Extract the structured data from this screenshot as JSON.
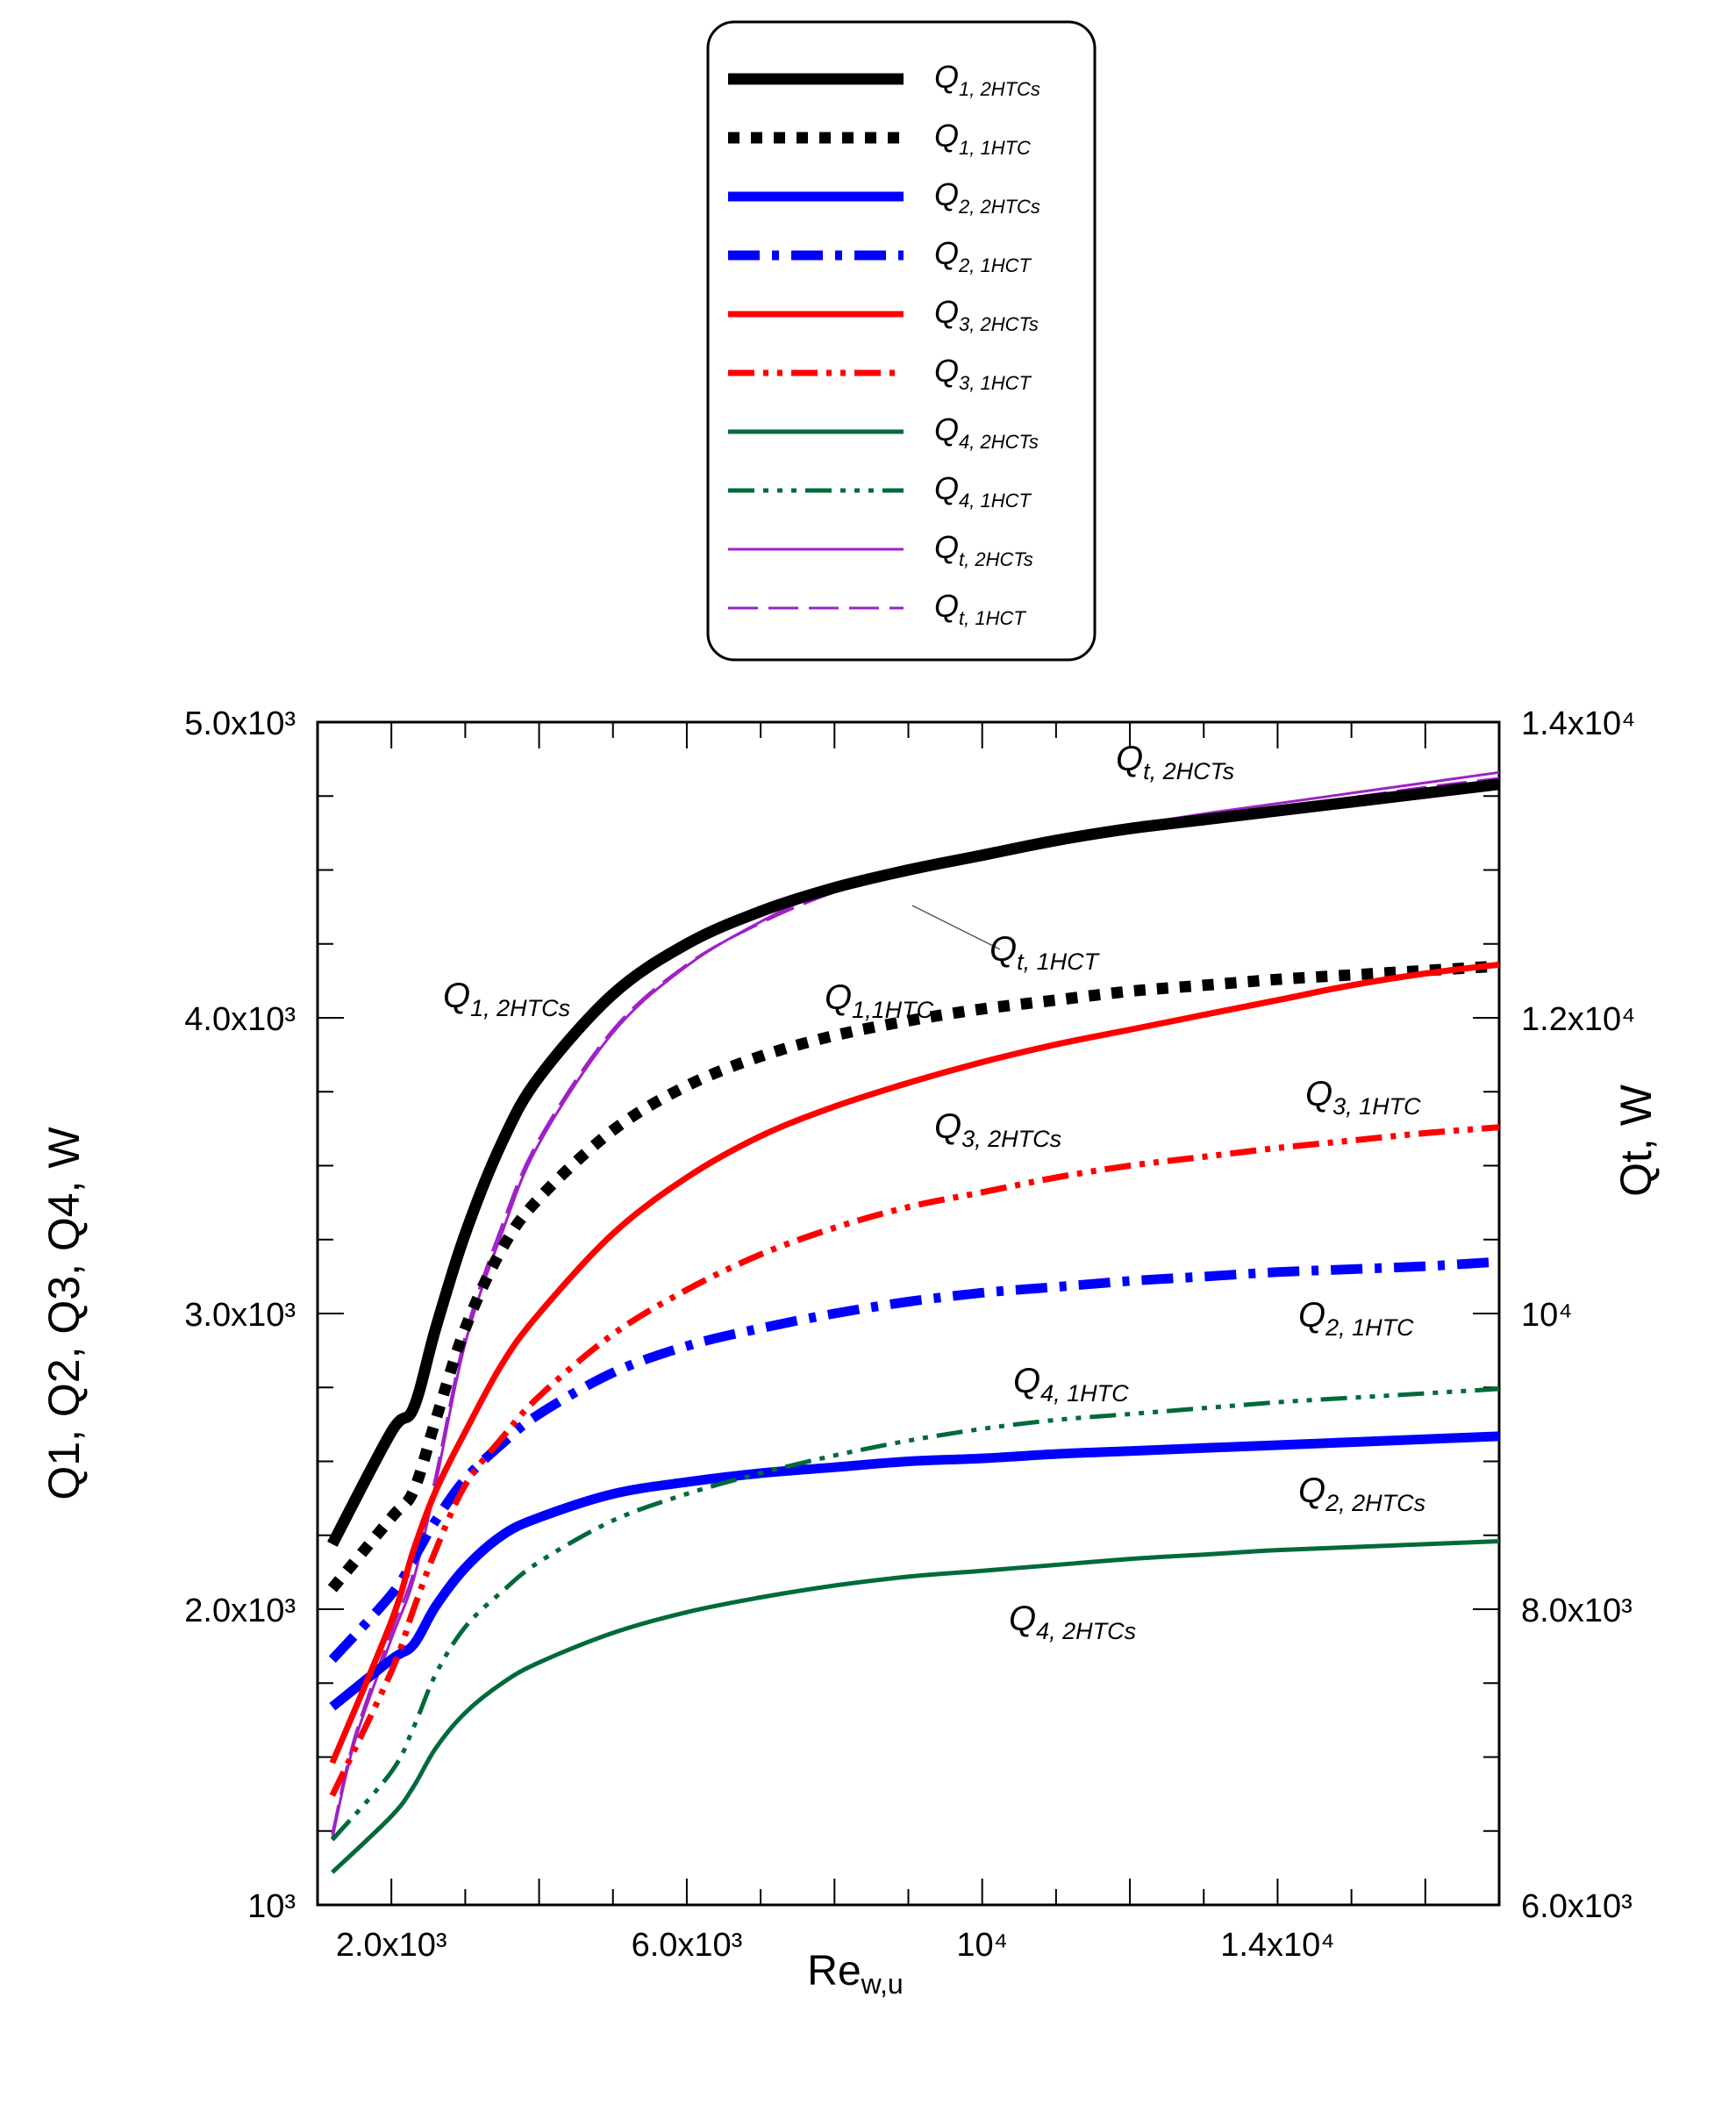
{
  "chart_data": {
    "type": "line",
    "xlabel": "Re",
    "xlabel_sub": "w,u",
    "ylabel_left": "Q1, Q2, Q3, Q4, W",
    "ylabel_right": "Qt, W",
    "xlim": [
      1000,
      17000
    ],
    "ylim_left": [
      1000,
      5000
    ],
    "ylim_right": [
      6000,
      14000
    ],
    "x_ticks": [
      {
        "value": 2000,
        "label": "2.0x10³"
      },
      {
        "value": 6000,
        "label": "6.0x10³"
      },
      {
        "value": 10000,
        "label": "10⁴"
      },
      {
        "value": 14000,
        "label": "1.4x10⁴"
      }
    ],
    "y_left_ticks": [
      {
        "value": 1000,
        "label": "10³"
      },
      {
        "value": 2000,
        "label": "2.0x10³"
      },
      {
        "value": 3000,
        "label": "3.0x10³"
      },
      {
        "value": 4000,
        "label": "4.0x10³"
      },
      {
        "value": 5000,
        "label": "5.0x10³"
      }
    ],
    "y_right_ticks": [
      {
        "value": 6000,
        "label": "6.0x10³"
      },
      {
        "value": 8000,
        "label": "8.0x10³"
      },
      {
        "value": 10000,
        "label": "10⁴"
      },
      {
        "value": 12000,
        "label": "1.2x10⁴"
      },
      {
        "value": 14000,
        "label": "1.4x10⁴"
      }
    ],
    "series": [
      {
        "key": "q1_2htcs",
        "legend_main": "Q",
        "legend_sub": "1, 2HTCs",
        "axis": "left",
        "color": "#000000",
        "width": 13,
        "dash": "",
        "x": [
          1200,
          2000,
          2300,
          2600,
          3000,
          3500,
          4000,
          5000,
          6000,
          7000,
          8000,
          9000,
          10000,
          11000,
          12000,
          13000,
          14000,
          15000,
          16000,
          17000
        ],
        "y": [
          2220,
          2600,
          2680,
          2950,
          3270,
          3580,
          3800,
          4080,
          4250,
          4360,
          4440,
          4500,
          4550,
          4600,
          4640,
          4670,
          4700,
          4730,
          4760,
          4790
        ]
      },
      {
        "key": "q1_1htc",
        "legend_main": "Q",
        "legend_sub": "1, 1HTC",
        "axis": "left",
        "color": "#000000",
        "width": 13,
        "dash": "13,13",
        "x": [
          1200,
          2000,
          2300,
          2600,
          3000,
          3500,
          4000,
          5000,
          6000,
          7000,
          8000,
          9000,
          10000,
          11000,
          12000,
          13000,
          14000,
          15000,
          16000,
          17000
        ],
        "y": [
          2070,
          2310,
          2400,
          2640,
          2950,
          3220,
          3390,
          3620,
          3770,
          3870,
          3940,
          3990,
          4030,
          4060,
          4090,
          4110,
          4130,
          4145,
          4160,
          4175
        ]
      },
      {
        "key": "q2_2htcs",
        "legend_main": "Q",
        "legend_sub": "2, 2HTCs",
        "axis": "left",
        "color": "#0000ff",
        "width": 11,
        "dash": "",
        "x": [
          1200,
          2000,
          2300,
          2600,
          3000,
          3500,
          4000,
          5000,
          6000,
          7000,
          8000,
          9000,
          10000,
          11000,
          12000,
          13000,
          14000,
          15000,
          16000,
          17000
        ],
        "y": [
          1670,
          1830,
          1880,
          2010,
          2140,
          2250,
          2310,
          2390,
          2430,
          2460,
          2480,
          2500,
          2510,
          2525,
          2535,
          2545,
          2555,
          2565,
          2575,
          2585
        ]
      },
      {
        "key": "q2_1hct",
        "legend_main": "Q",
        "legend_sub": "2, 1HCT",
        "axis": "left",
        "color": "#0000ff",
        "width": 11,
        "dash": "36,14,8,14",
        "x": [
          1200,
          2000,
          2300,
          2600,
          3000,
          3500,
          4000,
          5000,
          6000,
          7000,
          8000,
          9000,
          10000,
          11000,
          12000,
          13000,
          14000,
          15000,
          16000,
          17000
        ],
        "y": [
          1830,
          2050,
          2170,
          2300,
          2440,
          2560,
          2660,
          2800,
          2890,
          2950,
          3000,
          3040,
          3070,
          3090,
          3110,
          3125,
          3140,
          3150,
          3160,
          3175
        ]
      },
      {
        "key": "q3_2hcts",
        "legend_main": "Q",
        "legend_sub": "3, 2HCTs",
        "axis": "left",
        "color": "#ff0000",
        "width": 7,
        "dash": "",
        "x": [
          1200,
          2000,
          2300,
          2600,
          3000,
          3500,
          4000,
          5000,
          6000,
          7000,
          8000,
          9000,
          10000,
          11000,
          12000,
          13000,
          14000,
          15000,
          16000,
          17000
        ],
        "y": [
          1480,
          1960,
          2200,
          2400,
          2600,
          2830,
          3000,
          3270,
          3460,
          3600,
          3700,
          3780,
          3850,
          3910,
          3960,
          4010,
          4060,
          4110,
          4150,
          4180
        ]
      },
      {
        "key": "q3_1hct",
        "legend_main": "Q",
        "legend_sub": "3, 1HCT",
        "axis": "left",
        "color": "#ff0000",
        "width": 7,
        "dash": "30,10,6,10,6,10",
        "x": [
          1200,
          2000,
          2300,
          2600,
          3000,
          3500,
          4000,
          5000,
          6000,
          7000,
          8000,
          9000,
          10000,
          11000,
          12000,
          13000,
          14000,
          15000,
          16000,
          17000
        ],
        "y": [
          1370,
          1790,
          2000,
          2200,
          2420,
          2580,
          2720,
          2930,
          3080,
          3200,
          3290,
          3360,
          3410,
          3460,
          3500,
          3530,
          3560,
          3585,
          3610,
          3630
        ]
      },
      {
        "key": "q4_2hcts",
        "legend_main": "Q",
        "legend_sub": "4, 2HCTs",
        "axis": "left",
        "color": "#006a3a",
        "width": 5,
        "dash": "",
        "x": [
          1200,
          2000,
          2300,
          2600,
          3000,
          3500,
          4000,
          5000,
          6000,
          7000,
          8000,
          9000,
          10000,
          11000,
          12000,
          13000,
          14000,
          15000,
          16000,
          17000
        ],
        "y": [
          1110,
          1300,
          1400,
          1530,
          1650,
          1750,
          1820,
          1920,
          1990,
          2040,
          2080,
          2110,
          2130,
          2150,
          2170,
          2185,
          2200,
          2210,
          2220,
          2230
        ]
      },
      {
        "key": "q4_1hct",
        "legend_main": "Q",
        "legend_sub": "4, 1HCT",
        "axis": "left",
        "color": "#006a3a",
        "width": 5,
        "dash": "30,10,6,10,6,10,6,10",
        "x": [
          1200,
          2000,
          2300,
          2600,
          3000,
          3500,
          4000,
          5000,
          6000,
          7000,
          8000,
          9000,
          10000,
          11000,
          12000,
          13000,
          14000,
          15000,
          16000,
          17000
        ],
        "y": [
          1220,
          1450,
          1600,
          1780,
          1940,
          2060,
          2160,
          2300,
          2390,
          2460,
          2520,
          2570,
          2610,
          2640,
          2660,
          2680,
          2700,
          2715,
          2730,
          2745
        ]
      },
      {
        "key": "qt_2hcts",
        "legend_main": "Q",
        "legend_sub": "t, 2HCTs",
        "axis": "right",
        "color": "#a020c8",
        "width": 3,
        "dash": "",
        "x": [
          1200,
          1500,
          2000,
          2300,
          2600,
          3000,
          3500,
          4000,
          5000,
          6000,
          7000,
          8000,
          9000,
          10000,
          11000,
          12000,
          13000,
          14000,
          15000,
          16000,
          17000
        ],
        "y": [
          6450,
          7100,
          7800,
          8200,
          8850,
          9800,
          10550,
          11150,
          11900,
          12350,
          12650,
          12880,
          13020,
          13130,
          13220,
          13300,
          13380,
          13450,
          13520,
          13590,
          13660
        ]
      },
      {
        "key": "qt_1hct",
        "legend_main": "Q",
        "legend_sub": "t, 1HCT",
        "axis": "right",
        "color": "#a020c8",
        "width": 3,
        "dash": "34,12",
        "x": [
          1200,
          1500,
          2000,
          2300,
          2600,
          3000,
          3500,
          4000,
          5000,
          6000,
          7000,
          8000,
          9000,
          10000,
          11000,
          12000,
          13000,
          14000,
          15000,
          16000,
          17000
        ],
        "y": [
          6480,
          7130,
          7850,
          8250,
          8900,
          9850,
          10600,
          11180,
          11920,
          12360,
          12640,
          12850,
          12990,
          13100,
          13190,
          13270,
          13350,
          13420,
          13490,
          13560,
          13620
        ]
      }
    ],
    "annotations": [
      {
        "key": "ann-qt-2hcts",
        "main": "Q",
        "sub": "t, 2HCTs"
      },
      {
        "key": "ann-qt-1hct",
        "main": "Q",
        "sub": "t, 1HCT"
      },
      {
        "key": "ann-q1-2htcs",
        "main": "Q",
        "sub": "1, 2HTCs"
      },
      {
        "key": "ann-q1-1htc",
        "main": "Q",
        "sub": "1,1HTC"
      },
      {
        "key": "ann-q3-2htcs",
        "main": "Q",
        "sub": "3, 2HTCs"
      },
      {
        "key": "ann-q3-1htc",
        "main": "Q",
        "sub": "3, 1HTC"
      },
      {
        "key": "ann-q2-1htc",
        "main": "Q",
        "sub": "2, 1HTC"
      },
      {
        "key": "ann-q4-1htc",
        "main": "Q",
        "sub": "4, 1HTC"
      },
      {
        "key": "ann-q2-2htcs",
        "main": "Q",
        "sub": "2, 2HTCs"
      },
      {
        "key": "ann-q4-2htcs",
        "main": "Q",
        "sub": "4, 2HTCs"
      }
    ],
    "legend_position": "top-center"
  }
}
